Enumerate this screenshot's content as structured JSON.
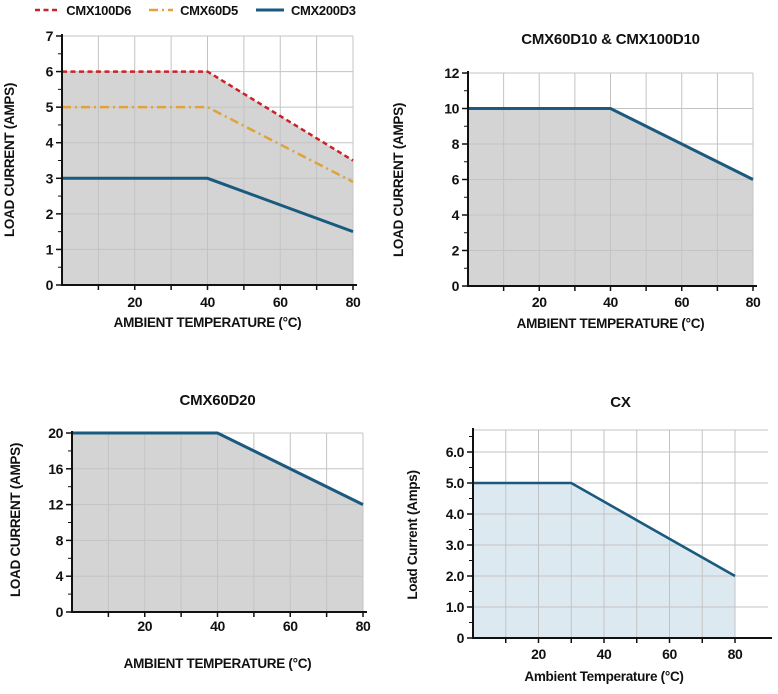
{
  "page": {
    "background": "#ffffff"
  },
  "colors": {
    "red": "#c9232a",
    "orange": "#dfa23c",
    "blue": "#1a5a7f",
    "gray_fill": "#d4d4d4",
    "lightblue_fill": "#dce9f1",
    "gridline": "#c3c3c3",
    "axis": "#111111"
  },
  "legend": {
    "items": [
      {
        "label": "CMX100D6",
        "color": "#c9232a",
        "dash": "dashed"
      },
      {
        "label": "CMX60D5",
        "color": "#dfa23c",
        "dash": "dashdot"
      },
      {
        "label": "CMX200D3",
        "color": "#1a5a7f",
        "dash": "solid"
      }
    ]
  },
  "chart_data": [
    {
      "type": "line",
      "title": "",
      "xlabel": "AMBIENT TEMPERATURE (°C)",
      "ylabel": "LOAD CURRENT (AMPS)",
      "xlim": [
        0,
        80
      ],
      "ylim": [
        0,
        7
      ],
      "x_ticks": {
        "major": [
          20,
          40,
          60,
          80
        ],
        "major_labels": [
          "20",
          "40",
          "60",
          "80"
        ],
        "minor": [
          10,
          30,
          50,
          70
        ]
      },
      "y_ticks": {
        "major": [
          0,
          1,
          2,
          3,
          4,
          5,
          6,
          7
        ],
        "labels": [
          "0",
          "1",
          "2",
          "3",
          "4",
          "5",
          "6",
          "7"
        ],
        "minor": [
          0.5,
          1.5,
          2.5,
          3.5,
          4.5,
          5.5,
          6.5
        ]
      },
      "grid": {
        "vertical": [
          10,
          20,
          30,
          40,
          50,
          60,
          70,
          80
        ],
        "horizontal": [
          1,
          2,
          3,
          4,
          5,
          6,
          7
        ]
      },
      "area_fill": {
        "series_index": 0,
        "color": "#d4d4d4",
        "x_max": 80
      },
      "legend_position": "top",
      "series": [
        {
          "name": "CMX100D6",
          "color": "#c9232a",
          "dash": "dashed",
          "x": [
            0,
            40,
            80
          ],
          "y": [
            6,
            6,
            3.5
          ]
        },
        {
          "name": "CMX60D5",
          "color": "#dfa23c",
          "dash": "dashdot",
          "x": [
            0,
            40,
            80
          ],
          "y": [
            5,
            5,
            2.9
          ]
        },
        {
          "name": "CMX200D3",
          "color": "#1a5a7f",
          "dash": "solid",
          "x": [
            0,
            40,
            80
          ],
          "y": [
            3,
            3,
            1.5
          ]
        }
      ]
    },
    {
      "type": "line",
      "title": "CMX60D10 & CMX100D10",
      "xlabel": "AMBIENT TEMPERATURE (°C)",
      "ylabel": "LOAD CURRENT (AMPS)",
      "xlim": [
        0,
        80
      ],
      "ylim": [
        0,
        12
      ],
      "x_ticks": {
        "major": [
          20,
          40,
          60,
          80
        ],
        "major_labels": [
          "20",
          "40",
          "60",
          "80"
        ],
        "minor": [
          10,
          30,
          50,
          70
        ]
      },
      "y_ticks": {
        "major": [
          0,
          2,
          4,
          6,
          8,
          10,
          12
        ],
        "labels": [
          "0",
          "2",
          "4",
          "6",
          "8",
          "10",
          "12"
        ],
        "minor": [
          1,
          3,
          5,
          7,
          9,
          11
        ]
      },
      "grid": {
        "vertical": [
          10,
          20,
          30,
          40,
          50,
          60,
          70,
          80
        ],
        "horizontal": [
          2,
          4,
          6,
          8,
          10,
          12
        ]
      },
      "area_fill": {
        "series_index": 0,
        "color": "#d4d4d4",
        "x_max": 80
      },
      "series": [
        {
          "name": "CMX60D10 & CMX100D10",
          "color": "#1a5a7f",
          "dash": "solid",
          "x": [
            0,
            40,
            80
          ],
          "y": [
            10,
            10,
            6
          ]
        }
      ]
    },
    {
      "type": "line",
      "title": "CMX60D20",
      "xlabel": "AMBIENT TEMPERATURE (°C)",
      "ylabel": "LOAD CURRENT (AMPS)",
      "xlim": [
        0,
        80
      ],
      "ylim": [
        0,
        20
      ],
      "x_ticks": {
        "major": [
          20,
          40,
          60,
          80
        ],
        "major_labels": [
          "20",
          "40",
          "60",
          "80"
        ],
        "minor": [
          10,
          30,
          50,
          70
        ]
      },
      "y_ticks": {
        "major": [
          0,
          4,
          8,
          12,
          16,
          20
        ],
        "labels": [
          "0",
          "4",
          "8",
          "12",
          "16",
          "20"
        ],
        "minor": [
          2,
          6,
          10,
          14,
          18
        ]
      },
      "grid": {
        "vertical": [
          10,
          20,
          30,
          40,
          50,
          60,
          70,
          80
        ],
        "horizontal": [
          4,
          8,
          12,
          16,
          20
        ]
      },
      "area_fill": {
        "series_index": 0,
        "color": "#d4d4d4",
        "x_max": 80
      },
      "series": [
        {
          "name": "CMX60D20",
          "color": "#1a5a7f",
          "dash": "solid",
          "x": [
            0,
            40,
            80
          ],
          "y": [
            20,
            20,
            12
          ]
        }
      ]
    },
    {
      "type": "line",
      "title": "CX",
      "xlabel": "Ambient Temperature (°C)",
      "ylabel": "Load Current (Amps)",
      "xlim": [
        0,
        80
      ],
      "ylim": [
        0,
        6
      ],
      "x_ticks": {
        "major": [
          20,
          40,
          60,
          80
        ],
        "major_labels": [
          "20",
          "40",
          "60",
          "80"
        ],
        "minor": [
          10,
          30,
          50,
          70
        ]
      },
      "y_ticks": {
        "major": [
          0,
          1,
          2,
          3,
          4,
          5,
          6
        ],
        "labels": [
          "0",
          "1.0",
          "2.0",
          "3.0",
          "4.0",
          "5.0",
          "6.0"
        ],
        "minor": [
          0.5,
          1.5,
          2.5,
          3.5,
          4.5,
          5.5,
          6.5
        ]
      },
      "grid": {
        "vertical": [
          10,
          20,
          30,
          40,
          50,
          60,
          70,
          80
        ],
        "horizontal": [
          1,
          2,
          3,
          4,
          5,
          6
        ]
      },
      "area_fill": {
        "series_index": 0,
        "color": "#dce9f1",
        "x_max": 80
      },
      "series": [
        {
          "name": "CX",
          "color": "#1a5a7f",
          "dash": "solid",
          "x": [
            0,
            30,
            80
          ],
          "y": [
            5,
            5,
            2
          ]
        }
      ]
    }
  ]
}
